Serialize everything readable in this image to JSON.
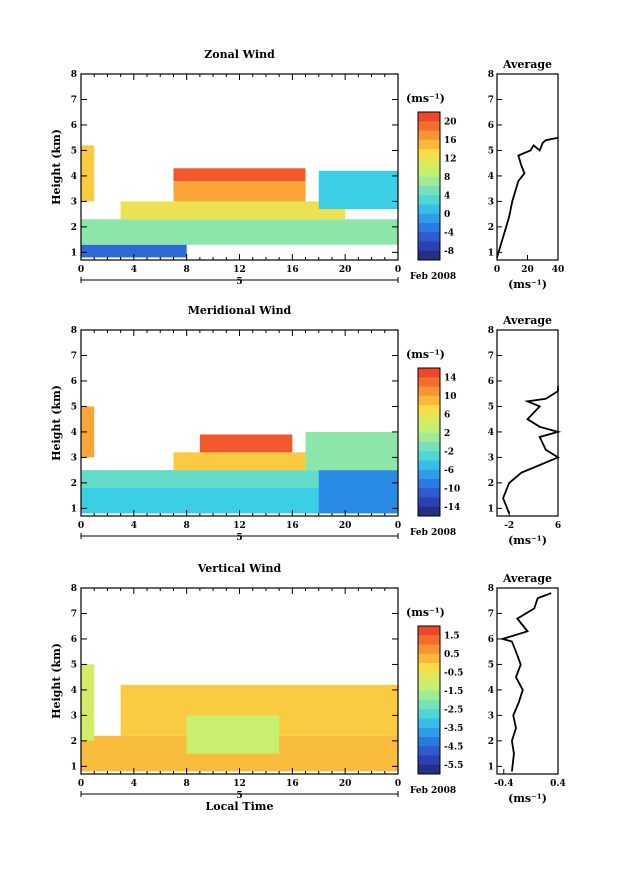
{
  "panels": [
    {
      "title": "Zonal Wind",
      "ylabel": "Height (km)",
      "unit": "(ms⁻¹)",
      "avg_title": "Average",
      "avg_xlabel": "(ms⁻¹)",
      "date_label": "Feb 2008",
      "day_label": "5"
    },
    {
      "title": "Meridional Wind",
      "ylabel": "Height (km)",
      "unit": "(ms⁻¹)",
      "avg_title": "Average",
      "avg_xlabel": "(ms⁻¹)",
      "date_label": "Feb 2008",
      "day_label": "5"
    },
    {
      "title": "Vertical Wind",
      "ylabel": "Height (km)",
      "unit": "(ms⁻¹)",
      "avg_title": "Average",
      "avg_xlabel": "(ms⁻¹)",
      "date_label": "Feb 2008",
      "day_label": "5",
      "xlabel": "Local Time"
    }
  ],
  "chart_data": [
    {
      "type": "heatmap",
      "title": "Zonal Wind",
      "xlabel": "",
      "ylabel": "Height (km)",
      "x_ticks": [
        "0",
        "4",
        "8",
        "12",
        "16",
        "20",
        "0"
      ],
      "xlim": [
        0,
        24
      ],
      "y_ticks": [
        "1",
        "2",
        "3",
        "4",
        "5",
        "6",
        "7",
        "8"
      ],
      "ylim": [
        0.7,
        8
      ],
      "colorbar_ticks": [
        "20",
        "16",
        "12",
        "8",
        "4",
        "0",
        "-4",
        "-8"
      ],
      "colorbar_range": [
        -10,
        22
      ],
      "regions": [
        {
          "x": [
            0,
            8
          ],
          "y": [
            0.8,
            1.3
          ],
          "value": -4
        },
        {
          "x": [
            0,
            24
          ],
          "y": [
            1.3,
            2.3
          ],
          "value": 6
        },
        {
          "x": [
            3,
            20
          ],
          "y": [
            2.3,
            3.0
          ],
          "value": 12
        },
        {
          "x": [
            7,
            17
          ],
          "y": [
            3.0,
            3.8
          ],
          "value": 16
        },
        {
          "x": [
            7,
            17
          ],
          "y": [
            3.8,
            4.3
          ],
          "value": 20
        },
        {
          "x": [
            18,
            24
          ],
          "y": [
            2.7,
            4.2
          ],
          "value": 2
        },
        {
          "x": [
            0,
            1
          ],
          "y": [
            3.0,
            5.2
          ],
          "value": 14
        }
      ],
      "average_profile": {
        "xlabel": "(ms⁻¹)",
        "x_ticks": [
          "0",
          "20",
          "40"
        ],
        "xlim": [
          0,
          40
        ],
        "y_ticks": [
          "1",
          "2",
          "3",
          "4",
          "5",
          "6",
          "7",
          "8"
        ],
        "ylim": [
          0.7,
          8
        ],
        "x": [
          0,
          2,
          5,
          8,
          10,
          12,
          14,
          18,
          16,
          14,
          22,
          24,
          28,
          30,
          32,
          40,
          40
        ],
        "y": [
          0.8,
          1.2,
          1.8,
          2.4,
          3.0,
          3.4,
          3.8,
          4.1,
          4.4,
          4.8,
          5.0,
          5.2,
          5.0,
          5.3,
          5.4,
          5.5,
          5.5
        ]
      }
    },
    {
      "type": "heatmap",
      "title": "Meridional Wind",
      "xlabel": "",
      "ylabel": "Height (km)",
      "x_ticks": [
        "0",
        "4",
        "8",
        "12",
        "16",
        "20",
        "0"
      ],
      "xlim": [
        0,
        24
      ],
      "y_ticks": [
        "1",
        "2",
        "3",
        "4",
        "5",
        "6",
        "7",
        "8"
      ],
      "ylim": [
        0.7,
        8
      ],
      "colorbar_ticks": [
        "14",
        "10",
        "6",
        "2",
        "-2",
        "-6",
        "-10",
        "-14"
      ],
      "colorbar_range": [
        -16,
        16
      ],
      "regions": [
        {
          "x": [
            0,
            24
          ],
          "y": [
            0.8,
            1.8
          ],
          "value": -4
        },
        {
          "x": [
            0,
            24
          ],
          "y": [
            1.8,
            2.5
          ],
          "value": -2
        },
        {
          "x": [
            7,
            17
          ],
          "y": [
            2.5,
            3.2
          ],
          "value": 8
        },
        {
          "x": [
            9,
            16
          ],
          "y": [
            3.2,
            3.9
          ],
          "value": 14
        },
        {
          "x": [
            18,
            24
          ],
          "y": [
            0.8,
            2.5
          ],
          "value": -8
        },
        {
          "x": [
            17,
            24
          ],
          "y": [
            2.5,
            4.0
          ],
          "value": 0
        },
        {
          "x": [
            0,
            1
          ],
          "y": [
            3.0,
            5.0
          ],
          "value": 10
        }
      ],
      "average_profile": {
        "xlabel": "(ms⁻¹)",
        "x_ticks": [
          "-2",
          "6"
        ],
        "xlim": [
          -4,
          6
        ],
        "y_ticks": [
          "1",
          "2",
          "3",
          "4",
          "5",
          "6",
          "7",
          "8"
        ],
        "ylim": [
          0.7,
          8
        ],
        "x": [
          -2,
          -3,
          -2,
          0,
          4,
          6,
          4,
          3,
          6,
          3,
          1,
          3,
          1,
          4,
          6,
          6
        ],
        "y": [
          0.8,
          1.4,
          2.0,
          2.4,
          2.8,
          3.0,
          3.3,
          3.8,
          4.0,
          4.2,
          4.5,
          5.0,
          5.2,
          5.3,
          5.6,
          5.8
        ]
      }
    },
    {
      "type": "heatmap",
      "title": "Vertical Wind",
      "xlabel": "Local Time",
      "ylabel": "Height (km)",
      "x_ticks": [
        "0",
        "4",
        "8",
        "12",
        "16",
        "20",
        "0"
      ],
      "xlim": [
        0,
        24
      ],
      "y_ticks": [
        "1",
        "2",
        "3",
        "4",
        "5",
        "6",
        "7",
        "8"
      ],
      "ylim": [
        0.7,
        8
      ],
      "colorbar_ticks": [
        "1.5",
        "0.5",
        "-0.5",
        "-1.5",
        "-2.5",
        "-3.5",
        "-4.5",
        "-5.5"
      ],
      "colorbar_range": [
        -6,
        2
      ],
      "regions": [
        {
          "x": [
            0,
            24
          ],
          "y": [
            0.8,
            2.2
          ],
          "value": 0.2
        },
        {
          "x": [
            3,
            24
          ],
          "y": [
            2.2,
            4.2
          ],
          "value": 0.0
        },
        {
          "x": [
            8,
            15
          ],
          "y": [
            1.5,
            3.0
          ],
          "value": -1.2
        },
        {
          "x": [
            0,
            1
          ],
          "y": [
            2.0,
            5.0
          ],
          "value": -1.0
        }
      ],
      "average_profile": {
        "xlabel": "(ms⁻¹)",
        "x_ticks": [
          "-0.4",
          "0.4"
        ],
        "xlim": [
          -0.5,
          0.4
        ],
        "y_ticks": [
          "1",
          "2",
          "3",
          "4",
          "5",
          "6",
          "7",
          "8"
        ],
        "ylim": [
          0.7,
          8
        ],
        "x": [
          -0.28,
          -0.25,
          -0.28,
          -0.22,
          -0.26,
          -0.18,
          -0.12,
          -0.22,
          -0.15,
          -0.22,
          -0.28,
          -0.42,
          -0.05,
          -0.2,
          0.05,
          0.1,
          0.3
        ],
        "y": [
          0.8,
          1.5,
          2.0,
          2.5,
          3.0,
          3.5,
          4.0,
          4.5,
          5.0,
          5.5,
          5.9,
          6.0,
          6.3,
          6.8,
          7.2,
          7.6,
          7.8
        ]
      }
    }
  ]
}
